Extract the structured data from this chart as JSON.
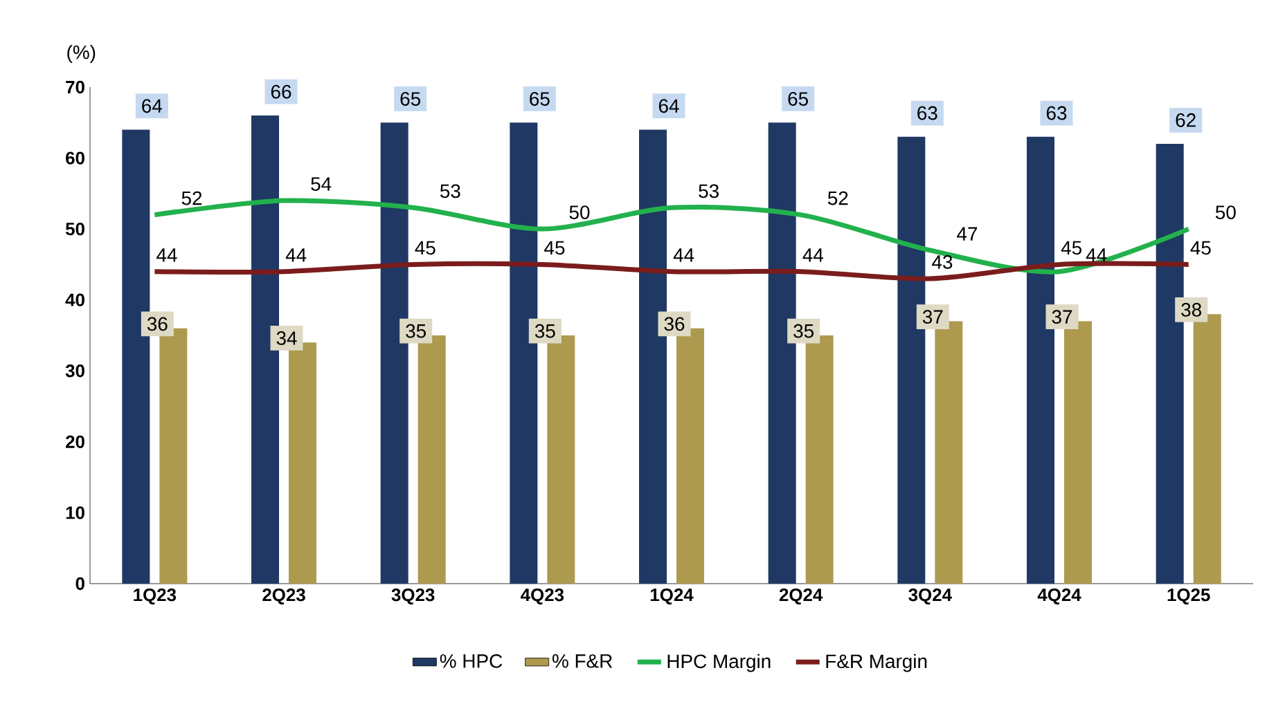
{
  "chart_data": {
    "type": "bar",
    "ylabel": "(%)",
    "categories": [
      "1Q23",
      "2Q23",
      "3Q23",
      "4Q23",
      "1Q24",
      "2Q24",
      "3Q24",
      "4Q24",
      "1Q25"
    ],
    "series": [
      {
        "name": "% HPC",
        "color": "#1f3864",
        "values": [
          64,
          66,
          65,
          65,
          64,
          65,
          63,
          63,
          62
        ]
      },
      {
        "name": "% F&R",
        "color": "#ad9a4f",
        "values": [
          36,
          34,
          35,
          35,
          36,
          35,
          37,
          37,
          38
        ]
      },
      {
        "name": "HPC Margin",
        "type": "line",
        "color": "#22b14c",
        "values": [
          52,
          54,
          53,
          50,
          53,
          52,
          47,
          44,
          50
        ]
      },
      {
        "name": "F&R Margin",
        "type": "line",
        "color": "#7b1c1c",
        "values": [
          44,
          44,
          45,
          45,
          44,
          44,
          43,
          45,
          45
        ]
      }
    ],
    "ylim": [
      0,
      70
    ],
    "yticks": [
      0,
      10,
      20,
      30,
      40,
      50,
      60,
      70
    ],
    "data_labels": true,
    "legend": "bottom",
    "grid": false,
    "marker": "none"
  }
}
